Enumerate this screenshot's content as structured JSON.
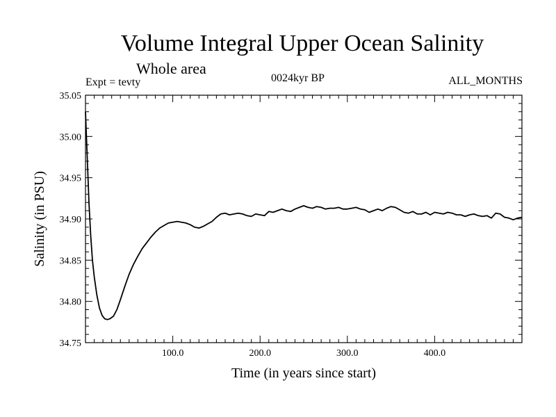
{
  "header": {
    "title": "Volume Integral Upper Ocean Salinity",
    "subtitle": "Whole area",
    "left_label": "Expt = tevty",
    "center_label": "0024kyr BP",
    "right_label": "ALL_MONTHS"
  },
  "chart_data": {
    "type": "line",
    "title": "Volume Integral Upper Ocean Salinity",
    "subtitle": "Whole area",
    "xlabel": "Time (in years since start)",
    "ylabel": "Salinity (in PSU)",
    "xlim": [
      0,
      500
    ],
    "ylim": [
      34.75,
      35.05
    ],
    "x_ticks": [
      100,
      200,
      300,
      400
    ],
    "x_tick_labels": [
      "100.0",
      "200.0",
      "300.0",
      "400.0"
    ],
    "y_ticks": [
      34.75,
      34.8,
      34.85,
      34.9,
      34.95,
      35.0,
      35.05
    ],
    "y_tick_labels": [
      "34.75",
      "34.80",
      "34.85",
      "34.90",
      "34.95",
      "35.00",
      "35.05"
    ],
    "grid": false,
    "line_color": "#000000",
    "series": [
      {
        "x": [
          0,
          2,
          4,
          6,
          8,
          10,
          13,
          16,
          19,
          22,
          25,
          28,
          32,
          36,
          40,
          45,
          50,
          55,
          60,
          65,
          70,
          75,
          80,
          85,
          90,
          95,
          100,
          105,
          110,
          115,
          120,
          125,
          130,
          135,
          140,
          145,
          150,
          155,
          160,
          165,
          170,
          175,
          180,
          185,
          190,
          195,
          200,
          205,
          210,
          215,
          220,
          225,
          230,
          235,
          240,
          245,
          250,
          255,
          260,
          265,
          270,
          275,
          280,
          285,
          290,
          295,
          300,
          305,
          310,
          315,
          320,
          325,
          330,
          335,
          340,
          345,
          350,
          355,
          360,
          365,
          370,
          375,
          380,
          385,
          390,
          395,
          400,
          405,
          410,
          415,
          420,
          425,
          430,
          435,
          440,
          445,
          450,
          455,
          460,
          465,
          470,
          475,
          480,
          485,
          490,
          495,
          500
        ],
        "y": [
          35.03,
          34.975,
          34.92,
          34.88,
          34.85,
          34.83,
          34.808,
          34.792,
          34.783,
          34.779,
          34.778,
          34.779,
          34.782,
          34.79,
          34.802,
          34.818,
          34.833,
          34.845,
          34.855,
          34.864,
          34.871,
          34.878,
          34.884,
          34.889,
          34.892,
          34.895,
          34.896,
          34.897,
          34.896,
          34.895,
          34.893,
          34.89,
          34.889,
          34.891,
          34.894,
          34.897,
          34.902,
          34.906,
          34.907,
          34.905,
          34.906,
          34.907,
          34.906,
          34.904,
          34.903,
          34.906,
          34.905,
          34.904,
          34.909,
          34.908,
          34.91,
          34.912,
          34.91,
          34.909,
          34.912,
          34.914,
          34.916,
          34.914,
          34.913,
          34.915,
          34.914,
          34.912,
          34.913,
          34.913,
          34.914,
          34.912,
          34.912,
          34.913,
          34.914,
          34.912,
          34.911,
          34.908,
          34.91,
          34.912,
          34.91,
          34.913,
          34.915,
          34.914,
          34.911,
          34.908,
          34.907,
          34.909,
          34.906,
          34.906,
          34.908,
          34.905,
          34.908,
          34.907,
          34.906,
          34.908,
          34.907,
          34.905,
          34.905,
          34.903,
          34.905,
          34.906,
          34.904,
          34.903,
          34.904,
          34.901,
          34.907,
          34.906,
          34.902,
          34.901,
          34.899,
          34.901,
          34.902
        ]
      }
    ]
  }
}
